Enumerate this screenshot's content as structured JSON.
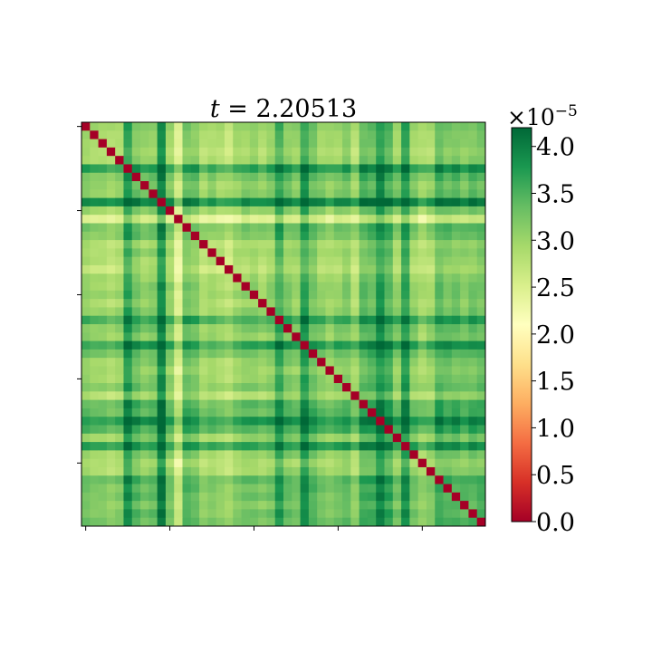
{
  "chart_data": {
    "type": "heatmap",
    "title": "t = 2.20513",
    "title_var": "t",
    "title_value": "= 2.20513",
    "n": 48,
    "colormap": "RdYlGn",
    "vmin": 0.0,
    "vmax": 4.2,
    "colorbar": {
      "multiplier_text": "×10",
      "multiplier_exponent": "−5",
      "ticks": [
        0.0,
        0.5,
        1.0,
        1.5,
        2.0,
        2.5,
        3.0,
        3.5,
        4.0
      ],
      "tick_labels": [
        "0.0",
        "0.5",
        "1.0",
        "1.5",
        "2.0",
        "2.5",
        "3.0",
        "3.5",
        "4.0"
      ]
    },
    "diagonal_value": 0.0,
    "row_level": [
      3.1,
      3.0,
      3.0,
      2.9,
      3.0,
      3.7,
      3.3,
      3.1,
      3.2,
      3.9,
      3.1,
      2.5,
      3.3,
      3.2,
      2.9,
      3.0,
      2.9,
      2.8,
      3.0,
      3.1,
      3.1,
      3.0,
      3.1,
      3.6,
      3.2,
      3.1,
      3.7,
      3.3,
      3.1,
      3.0,
      3.1,
      3.2,
      2.9,
      3.4,
      3.4,
      3.8,
      3.5,
      3.1,
      3.7,
      3.1,
      2.9,
      3.0,
      3.4,
      3.3,
      3.3,
      3.2,
      3.3,
      3.3
    ],
    "x_tick_count": 5,
    "y_tick_count": 5
  }
}
